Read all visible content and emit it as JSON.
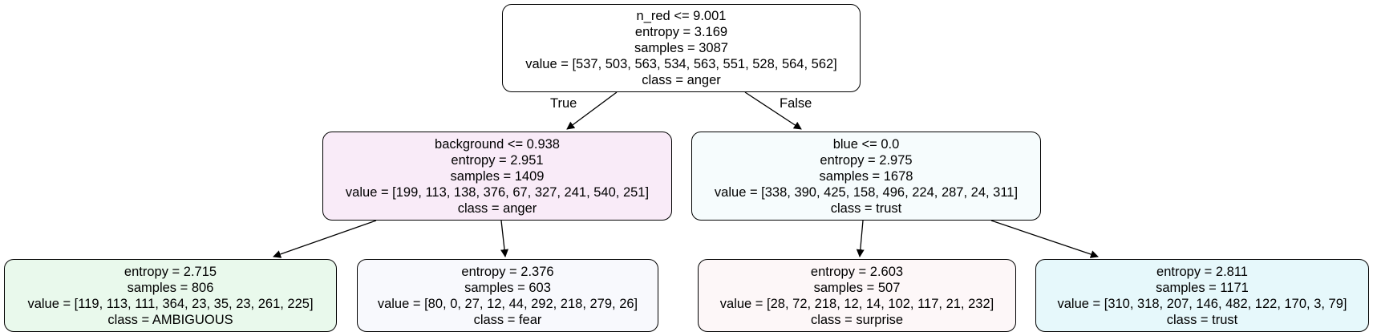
{
  "edge_labels": {
    "true": "True",
    "false": "False"
  },
  "nodes": [
    {
      "id": "n0",
      "split": "n_red <= 9.001",
      "entropy": "entropy = 3.169",
      "samples": "samples = 3087",
      "value": "value = [537, 503, 563, 534, 563, 551, 528, 564, 562]",
      "class": "class = anger",
      "fill": "#ffffff"
    },
    {
      "id": "n1",
      "split": "background <= 0.938",
      "entropy": "entropy = 2.951",
      "samples": "samples = 1409",
      "value": "value = [199, 113, 138, 376, 67, 327, 241, 540, 251]",
      "class": "class = anger",
      "fill": "#f9ebf8"
    },
    {
      "id": "n2",
      "split": "blue <= 0.0",
      "entropy": "entropy = 2.975",
      "samples": "samples = 1678",
      "value": "value = [338, 390, 425, 158, 496, 224, 287, 24, 311]",
      "class": "class = trust",
      "fill": "#f6fcfd"
    },
    {
      "id": "n3",
      "entropy": "entropy = 2.715",
      "samples": "samples = 806",
      "value": "value = [119, 113, 111, 364, 23, 35, 23, 261, 225]",
      "class": "class = AMBIGUOUS",
      "fill": "#e9f9ec"
    },
    {
      "id": "n4",
      "entropy": "entropy = 2.376",
      "samples": "samples = 603",
      "value": "value = [80, 0, 27, 12, 44, 292, 218, 279, 26]",
      "class": "class = fear",
      "fill": "#f8f9fd"
    },
    {
      "id": "n5",
      "entropy": "entropy = 2.603",
      "samples": "samples = 507",
      "value": "value = [28, 72, 218, 12, 14, 102, 117, 21, 232]",
      "class": "class = surprise",
      "fill": "#fdf7f8"
    },
    {
      "id": "n6",
      "entropy": "entropy = 2.811",
      "samples": "samples = 1171",
      "value": "value = [310, 318, 207, 146, 482, 122, 170, 3, 79]",
      "class": "class = trust",
      "fill": "#e6f8fb"
    }
  ],
  "edges": [
    {
      "from": "n0",
      "to": "n1",
      "label": "true"
    },
    {
      "from": "n0",
      "to": "n2",
      "label": "false"
    },
    {
      "from": "n1",
      "to": "n3"
    },
    {
      "from": "n1",
      "to": "n4"
    },
    {
      "from": "n2",
      "to": "n5"
    },
    {
      "from": "n2",
      "to": "n6"
    }
  ]
}
